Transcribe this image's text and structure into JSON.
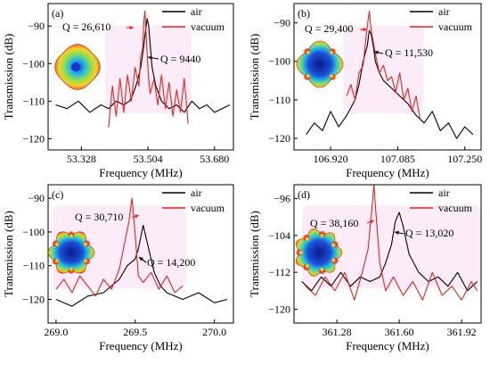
{
  "colors": {
    "air": "#000000",
    "vacuum": "#e8231b",
    "frame": "#000000",
    "highlight": "#f7c9ee"
  },
  "chart_data": [
    {
      "type": "line",
      "panel": "(a)",
      "xlabel": "Frequency (MHz)",
      "ylabel": "Transmission (dB)",
      "xlim": [
        53.24,
        53.73
      ],
      "ylim": [
        -123,
        -84
      ],
      "xticks": [
        53.328,
        53.504,
        53.68
      ],
      "xtick_labels": [
        "53.328",
        "53.504",
        "53.680"
      ],
      "yticks": [
        -90,
        -100,
        -110,
        -120
      ],
      "ytick_labels": [
        "−90",
        "−100",
        "−110",
        "−120"
      ],
      "legend": [
        "air",
        "vacuum"
      ],
      "legend_position": "top-right",
      "series": [
        {
          "name": "air",
          "x": [
            53.26,
            53.29,
            53.32,
            53.35,
            53.38,
            53.4,
            53.42,
            53.44,
            53.455,
            53.465,
            53.475,
            53.485,
            53.492,
            53.498,
            53.502,
            53.506,
            53.51,
            53.515,
            53.525,
            53.54,
            53.56,
            53.58,
            53.6,
            53.62,
            53.64,
            53.66,
            53.68,
            53.7,
            53.72
          ],
          "y": [
            -111,
            -112,
            -110,
            -113,
            -111,
            -112,
            -110,
            -111,
            -110,
            -108,
            -105,
            -101,
            -96,
            -91,
            -88,
            -90,
            -95,
            -101,
            -106,
            -110,
            -112,
            -111,
            -113,
            -110,
            -112,
            -111,
            -113,
            -112,
            -111
          ]
        },
        {
          "name": "vacuum",
          "x": [
            53.4,
            53.41,
            53.42,
            53.43,
            53.44,
            53.45,
            53.46,
            53.47,
            53.48,
            53.485,
            53.49,
            53.493,
            53.496,
            53.5,
            53.505,
            53.51,
            53.52,
            53.53,
            53.54,
            53.55,
            53.56,
            53.57,
            53.58,
            53.59,
            53.6,
            53.61
          ],
          "y": [
            -117,
            -106,
            -114,
            -104,
            -113,
            -103,
            -110,
            -101,
            -106,
            -98,
            -96,
            -89,
            -86,
            -94,
            -103,
            -108,
            -104,
            -111,
            -103,
            -112,
            -105,
            -114,
            -107,
            -113,
            -104,
            -116
          ]
        }
      ],
      "annotations": [
        "Q = 26,610",
        "Q = 9440"
      ]
    },
    {
      "type": "line",
      "panel": "(b)",
      "xlabel": "Frequency (MHz)",
      "ylabel": "Transmission (dB)",
      "xlim": [
        106.83,
        107.29
      ],
      "ylim": [
        -123,
        -85
      ],
      "xticks": [
        106.92,
        107.085,
        107.25
      ],
      "xtick_labels": [
        "106.920",
        "107.085",
        "107.250"
      ],
      "yticks": [
        -90,
        -100,
        -110,
        -120
      ],
      "ytick_labels": [
        "−90",
        "−100",
        "−110",
        "−120"
      ],
      "legend": [
        "air",
        "vacuum"
      ],
      "legend_position": "top-right",
      "series": [
        {
          "name": "air",
          "x": [
            106.86,
            106.88,
            106.9,
            106.92,
            106.94,
            106.96,
            106.98,
            106.99,
            107.0,
            107.01,
            107.015,
            107.02,
            107.025,
            107.03,
            107.04,
            107.05,
            107.07,
            107.09,
            107.11,
            107.13,
            107.15,
            107.17,
            107.19,
            107.21,
            107.23,
            107.25,
            107.27
          ],
          "y": [
            -119,
            -116,
            -118,
            -113,
            -117,
            -114,
            -110,
            -106,
            -100,
            -96,
            -92,
            -93,
            -96,
            -100,
            -103,
            -105,
            -107,
            -109,
            -111,
            -114,
            -116,
            -113,
            -118,
            -116,
            -120,
            -117,
            -119
          ]
        },
        {
          "name": "vacuum",
          "x": [
            106.96,
            106.97,
            106.98,
            106.99,
            107.0,
            107.005,
            107.01,
            107.015,
            107.02,
            107.03,
            107.04,
            107.05,
            107.06,
            107.07,
            107.08,
            107.09,
            107.1,
            107.11,
            107.12,
            107.13,
            107.14
          ],
          "y": [
            -109,
            -106,
            -110,
            -103,
            -101,
            -96,
            -91,
            -87,
            -92,
            -98,
            -103,
            -101,
            -105,
            -104,
            -108,
            -103,
            -110,
            -107,
            -113,
            -109,
            -115
          ]
        }
      ],
      "annotations": [
        "Q = 29,400",
        "Q = 11,530"
      ]
    },
    {
      "type": "line",
      "panel": "(c)",
      "xlabel": "Frequency (MHz)",
      "ylabel": "Transmission (dB)",
      "xlim": [
        268.95,
        270.12
      ],
      "ylim": [
        -127,
        -86
      ],
      "xticks": [
        269.0,
        269.5,
        270.0
      ],
      "xtick_labels": [
        "269.0",
        "269.5",
        "270.0"
      ],
      "yticks": [
        -90,
        -100,
        -110,
        -120
      ],
      "ytick_labels": [
        "−90",
        "−100",
        "−110",
        "−120"
      ],
      "legend": [
        "air",
        "vacuum"
      ],
      "legend_position": "top-right",
      "series": [
        {
          "name": "air",
          "x": [
            269.0,
            269.1,
            269.2,
            269.3,
            269.35,
            269.4,
            269.45,
            269.5,
            269.52,
            269.55,
            269.58,
            269.62,
            269.66,
            269.7,
            269.8,
            269.9,
            270.0,
            270.08
          ],
          "y": [
            -120,
            -122,
            -119,
            -118,
            -116,
            -114,
            -110,
            -108,
            -105,
            -98,
            -104,
            -112,
            -116,
            -118,
            -120,
            -118,
            -121,
            -120
          ]
        },
        {
          "name": "vacuum",
          "x": [
            269.0,
            269.05,
            269.1,
            269.15,
            269.2,
            269.25,
            269.3,
            269.35,
            269.4,
            269.43,
            269.46,
            269.48,
            269.5,
            269.52,
            269.55,
            269.6,
            269.65,
            269.7,
            269.75,
            269.8
          ],
          "y": [
            -117,
            -114,
            -118,
            -113,
            -116,
            -119,
            -114,
            -117,
            -111,
            -104,
            -97,
            -90,
            -101,
            -113,
            -115,
            -112,
            -117,
            -113,
            -118,
            -116
          ]
        }
      ],
      "annotations": [
        "Q = 30,710",
        "Q = 14,200"
      ]
    },
    {
      "type": "line",
      "panel": "(d)",
      "xlabel": "Frequency (MHz)",
      "ylabel": "Transmission (dB)",
      "xlim": [
        361.06,
        362.02
      ],
      "ylim": [
        -123,
        -93
      ],
      "xticks": [
        361.28,
        361.6,
        361.92
      ],
      "xtick_labels": [
        "361.28",
        "361.60",
        "361.92"
      ],
      "yticks": [
        -96,
        -104,
        -112,
        -120
      ],
      "ytick_labels": [
        "−96",
        "−104",
        "−112",
        "−120"
      ],
      "legend": [
        "air",
        "vacuum"
      ],
      "legend_position": "top-right",
      "series": [
        {
          "name": "air",
          "x": [
            361.1,
            361.15,
            361.2,
            361.25,
            361.3,
            361.35,
            361.4,
            361.45,
            361.5,
            361.53,
            361.56,
            361.58,
            361.6,
            361.62,
            361.65,
            361.7,
            361.75,
            361.8,
            361.85,
            361.9,
            361.95,
            362.0
          ],
          "y": [
            -114,
            -116,
            -113,
            -115,
            -112,
            -115,
            -113,
            -114,
            -113,
            -110,
            -106,
            -101,
            -99,
            -102,
            -108,
            -112,
            -114,
            -113,
            -115,
            -112,
            -116,
            -114
          ]
        },
        {
          "name": "vacuum",
          "x": [
            361.12,
            361.17,
            361.22,
            361.27,
            361.32,
            361.37,
            361.41,
            361.44,
            361.46,
            361.47,
            361.48,
            361.5,
            361.53,
            361.57,
            361.62,
            361.67,
            361.72,
            361.77,
            361.82,
            361.87,
            361.92,
            361.97,
            362.0
          ],
          "y": [
            -115,
            -117,
            -113,
            -116,
            -112,
            -118,
            -112,
            -107,
            -98,
            -93,
            -99,
            -110,
            -116,
            -113,
            -117,
            -114,
            -118,
            -112,
            -117,
            -115,
            -118,
            -114,
            -116
          ]
        }
      ],
      "annotations": [
        "Q = 38,160",
        "Q = 13,020"
      ]
    }
  ]
}
